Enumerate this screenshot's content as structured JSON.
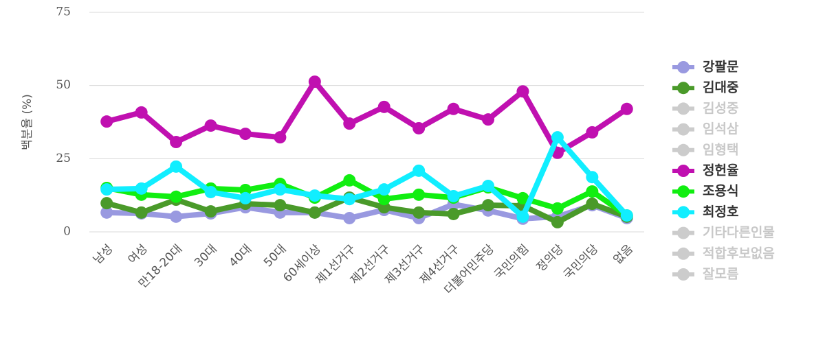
{
  "chart_data": {
    "type": "line",
    "y_label": "백분율 (%)",
    "categories": [
      "남성",
      "여성",
      "만18-20대",
      "30대",
      "40대",
      "50대",
      "60세이상",
      "제1선거구",
      "제2선거구",
      "제3선거구",
      "제4선거구",
      "더불어민주당",
      "국민의힘",
      "정의당",
      "국민의당",
      "없음"
    ],
    "ylim": [
      0,
      75
    ],
    "yticks": [
      0,
      25,
      50,
      75
    ],
    "grid": true,
    "legend": "right",
    "series": [
      {
        "name": "강팔문",
        "color": "#9999e0",
        "visible": true,
        "values": [
          6.6,
          6.3,
          5.2,
          6.3,
          8.4,
          6.6,
          6.6,
          4.7,
          7.5,
          4.7,
          9.4,
          7.3,
          4.5,
          5.2,
          9.1,
          4.7
        ]
      },
      {
        "name": "김대중",
        "color": "#4a9a2a",
        "visible": true,
        "values": [
          9.8,
          6.6,
          11,
          7,
          9.6,
          9.1,
          6.6,
          11.7,
          8.4,
          6.6,
          6.1,
          9.1,
          8.9,
          3.3,
          9.6,
          5.2
        ]
      },
      {
        "name": "김성중",
        "color": "#cccccc",
        "visible": false,
        "values": [
          null,
          null,
          null,
          null,
          null,
          null,
          null,
          null,
          null,
          null,
          null,
          null,
          null,
          null,
          null,
          null
        ]
      },
      {
        "name": "임석삼",
        "color": "#cccccc",
        "visible": false,
        "values": [
          null,
          null,
          null,
          null,
          null,
          null,
          null,
          null,
          null,
          null,
          null,
          null,
          null,
          null,
          null,
          null
        ]
      },
      {
        "name": "임형택",
        "color": "#cccccc",
        "visible": false,
        "values": [
          null,
          null,
          null,
          null,
          null,
          null,
          null,
          null,
          null,
          null,
          null,
          null,
          null,
          null,
          null,
          null
        ]
      },
      {
        "name": "정헌율",
        "color": "#c010b0",
        "visible": true,
        "values": [
          37.7,
          40.8,
          30.7,
          36.3,
          33.5,
          32.3,
          51.3,
          37,
          42.7,
          35.4,
          42,
          38.4,
          48,
          27,
          34,
          42
        ]
      },
      {
        "name": "조용식",
        "color": "#11ee11",
        "visible": true,
        "values": [
          15,
          12.7,
          12,
          14.8,
          14.3,
          16.4,
          11.7,
          17.6,
          11.2,
          12.7,
          11.7,
          15.2,
          11.5,
          8,
          13.8,
          5.6
        ]
      },
      {
        "name": "최정호",
        "color": "#11eeff",
        "visible": true,
        "values": [
          14.5,
          14.8,
          22.3,
          13.6,
          11.5,
          14.5,
          12.4,
          11.2,
          14.5,
          20.9,
          12.2,
          15.7,
          5.2,
          32.3,
          18.7,
          5.6
        ]
      },
      {
        "name": "기타다른인물",
        "color": "#cccccc",
        "visible": false,
        "values": [
          null,
          null,
          null,
          null,
          null,
          null,
          null,
          null,
          null,
          null,
          null,
          null,
          null,
          null,
          null,
          null
        ]
      },
      {
        "name": "적합후보없음",
        "color": "#cccccc",
        "visible": false,
        "values": [
          null,
          null,
          null,
          null,
          null,
          null,
          null,
          null,
          null,
          null,
          null,
          null,
          null,
          null,
          null,
          null
        ]
      },
      {
        "name": "잘모름",
        "color": "#cccccc",
        "visible": false,
        "values": [
          null,
          null,
          null,
          null,
          null,
          null,
          null,
          null,
          null,
          null,
          null,
          null,
          null,
          null,
          null,
          null
        ]
      }
    ]
  }
}
